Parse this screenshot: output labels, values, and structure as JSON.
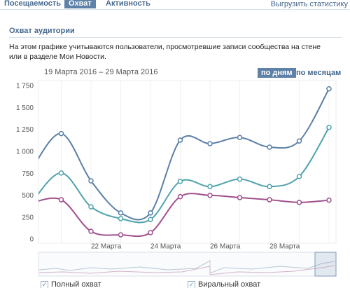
{
  "tabs": [
    "Посещаемость",
    "Охват",
    "Активность"
  ],
  "active_tab": 1,
  "export_link": "Выгрузить статистику",
  "section_title": "Охват аудитории",
  "description": "На этом графике учитываются пользователи, просмотревшие записи сообщества на стене или в разделе Мои Новости.",
  "date_range": "19 Марта 2016 – 29 Марта 2016",
  "period_buttons": [
    "по дням",
    "по месяцам"
  ],
  "active_period": 0,
  "chart_data": {
    "type": "line",
    "categories": [
      null,
      null,
      "22 Марта",
      null,
      "24 Марта",
      null,
      "26 Марта",
      null,
      "28 Марта",
      null,
      null
    ],
    "ylim": [
      0,
      1750
    ],
    "yticks": [
      0,
      250,
      500,
      750,
      {
        "value": 1000,
        "label": "1 000"
      },
      {
        "value": 1250,
        "label": "1 250"
      },
      {
        "value": 1500,
        "label": "1 500"
      },
      {
        "value": 1750,
        "label": "1 750"
      }
    ],
    "series": [
      {
        "name": "Полный охват",
        "color": "#5b7fa6",
        "values": [
          800,
          1210,
          670,
          305,
          305,
          1135,
          1095,
          1165,
          1055,
          1125,
          1720
        ]
      },
      {
        "name": "Виральный охват",
        "color": "#4fa3ac",
        "values": [
          420,
          760,
          375,
          240,
          230,
          665,
          605,
          690,
          605,
          720,
          1280
        ]
      },
      {
        "color": "#a0508c",
        "values": [
          420,
          455,
          95,
          55,
          80,
          490,
          505,
          480,
          455,
          425,
          450
        ]
      }
    ]
  }
}
